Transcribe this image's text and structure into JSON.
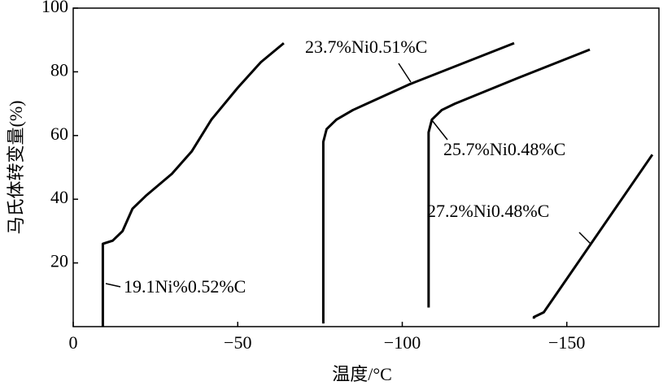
{
  "chart_data": {
    "type": "line",
    "xlabel": "温度/°C",
    "ylabel": "马氏体转变量(%)",
    "xlim": [
      0,
      -178
    ],
    "ylim": [
      0,
      100
    ],
    "xticks": [
      0,
      {
        "value": -50,
        "label": "−50"
      },
      {
        "value": -100,
        "label": "−100"
      },
      {
        "value": -150,
        "label": "−150"
      }
    ],
    "yticks": [
      20,
      40,
      60,
      80,
      100
    ],
    "series": [
      {
        "name": "19.1Ni%0.52%C",
        "color": "#000000",
        "x": [
          -9,
          -9,
          -12,
          -15,
          -18,
          -22,
          -30,
          -36,
          -42,
          -50,
          -57,
          -64
        ],
        "values": [
          0,
          26,
          27,
          30,
          37,
          41,
          48,
          55,
          65,
          75,
          83,
          89
        ]
      },
      {
        "name": "23.7%Ni0.51%C",
        "color": "#000000",
        "x": [
          -76,
          -76,
          -77,
          -80,
          -85,
          -102,
          -134
        ],
        "values": [
          1,
          58,
          62,
          65,
          68,
          76,
          89
        ]
      },
      {
        "name": "25.7%Ni0.48%C",
        "color": "#000000",
        "x": [
          -108,
          -108,
          -109,
          -112,
          -116,
          -135,
          -157
        ],
        "values": [
          6,
          61,
          65,
          68,
          70,
          78,
          87
        ]
      },
      {
        "name": "27.2%Ni0.48%C",
        "color": "#000000",
        "x": [
          -140,
          -140,
          -143,
          -146,
          -176
        ],
        "values": [
          2.5,
          3,
          4.5,
          9,
          54
        ]
      }
    ]
  }
}
